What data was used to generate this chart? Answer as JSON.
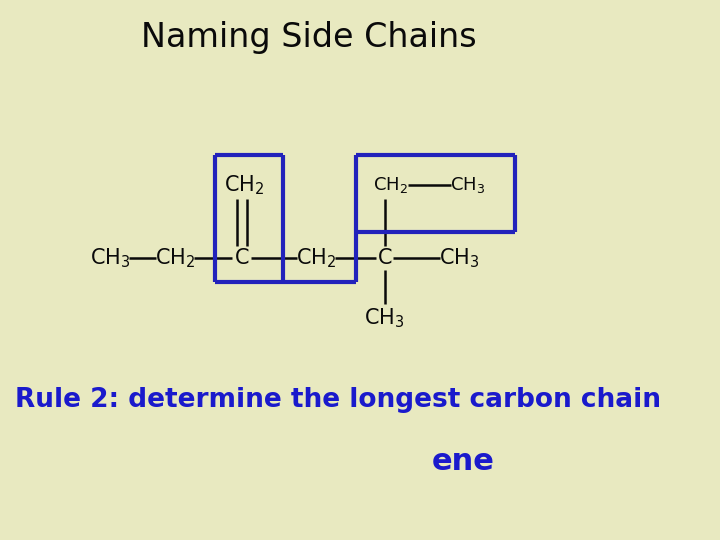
{
  "bg_color": "#e8e9c0",
  "title": "Naming Side Chains",
  "title_fontsize": 24,
  "title_color": "#0a0a0a",
  "rule_text": "Rule 2: determine the longest carbon chain",
  "rule_color": "#1a1acc",
  "rule_fontsize": 19,
  "ene_text": "ene",
  "ene_color": "#1a1acc",
  "ene_fontsize": 22,
  "structure_color": "#0a0a0a",
  "highlight_color": "#2222bb",
  "highlight_lw": 3.0,
  "chem_fontsize": 15,
  "chem_fontsize_small": 13
}
